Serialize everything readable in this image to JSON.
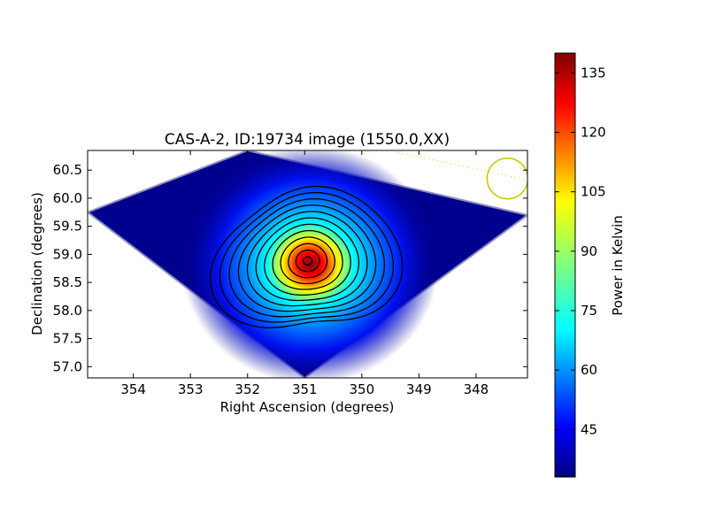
{
  "chart_data": {
    "type": "heatmap",
    "title": "CAS-A-2, ID:19734 image (1550.0,XX)",
    "xlabel": "Right Ascension (degrees)",
    "ylabel": "Declination (degrees)",
    "xlim": [
      354.8,
      347.1
    ],
    "ylim": [
      56.8,
      60.85
    ],
    "xticks": [
      354,
      353,
      352,
      351,
      350,
      349,
      348
    ],
    "yticks": [
      57.0,
      57.5,
      58.0,
      58.5,
      59.0,
      59.5,
      60.0,
      60.5
    ],
    "x_inverted": true,
    "colorbar": {
      "label": "Power in Kelvin",
      "min": 33,
      "max": 140,
      "ticks": [
        45,
        60,
        75,
        90,
        105,
        120,
        135
      ],
      "colormap": "jet"
    },
    "peak": {
      "ra": 350.9,
      "dec": 58.82,
      "value": 138
    },
    "background_value": 35,
    "contour_count": 12,
    "annotations": {
      "beam_circle": {
        "ra": 347.45,
        "dec": 60.35,
        "color": "#c8c800"
      }
    },
    "footprint": {
      "top": {
        "ra": 352.0,
        "dec": 60.85
      },
      "right": {
        "ra": 347.1,
        "dec": 59.7
      },
      "bottom": {
        "ra": 351.0,
        "dec": 56.8
      },
      "left": {
        "ra": 354.8,
        "dec": 59.75
      }
    }
  },
  "colors": {
    "background_fill": "#00008f",
    "contour": "#000000",
    "annotation": "#c8c800"
  }
}
